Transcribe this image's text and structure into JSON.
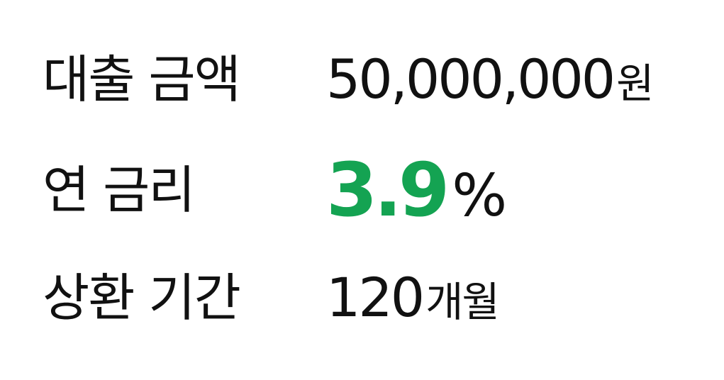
{
  "loan": {
    "amount": {
      "label": "대출 금액",
      "value": "50,000,000",
      "unit": "원"
    },
    "rate": {
      "label": "연 금리",
      "value": "3.9",
      "unit": "%"
    },
    "term": {
      "label": "상환 기간",
      "value": "120",
      "unit": "개월"
    }
  },
  "colors": {
    "text": "#111111",
    "accent": "#14a352",
    "background": "#ffffff"
  }
}
